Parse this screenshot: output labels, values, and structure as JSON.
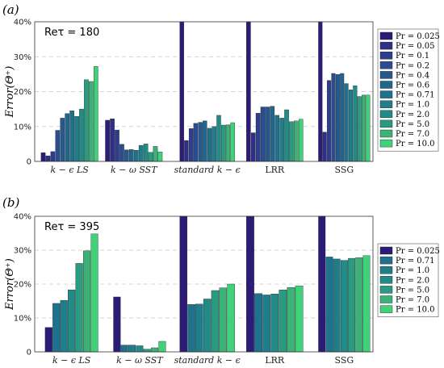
{
  "chart_data": [
    {
      "type": "bar",
      "panel_label": "(a)",
      "annotation": "Reτ = 180",
      "ylabel": "Error(Θ⁺)",
      "yticks": [
        "0",
        "10%",
        "20%",
        "30%",
        "40%"
      ],
      "ylim": [
        0,
        40
      ],
      "grid": true,
      "legend_position": "right",
      "categories": [
        "k − ϵ LS",
        "k − ω SST",
        "standard k − ϵ",
        "LRR",
        "SSG"
      ],
      "series": [
        {
          "name": "Pr = 0.025",
          "color": "#2d1b78",
          "values": [
            2.5,
            11.8,
            40,
            40,
            40
          ]
        },
        {
          "name": "Pr = 0.05",
          "color": "#302f87",
          "values": [
            1.6,
            12.2,
            6.0,
            8.2,
            8.4
          ]
        },
        {
          "name": "Pr = 0.1",
          "color": "#2e3e8f",
          "values": [
            2.8,
            9.0,
            9.4,
            13.8,
            23.2
          ]
        },
        {
          "name": "Pr = 0.2",
          "color": "#2a4c90",
          "values": [
            8.9,
            4.9,
            10.9,
            15.6,
            25.2
          ]
        },
        {
          "name": "Pr = 0.4",
          "color": "#265a8f",
          "values": [
            12.4,
            3.3,
            11.2,
            15.6,
            24.9
          ]
        },
        {
          "name": "Pr = 0.6",
          "color": "#22668e",
          "values": [
            13.7,
            3.4,
            11.6,
            15.8,
            25.2
          ]
        },
        {
          "name": "Pr = 0.71",
          "color": "#1f728d",
          "values": [
            14.5,
            3.2,
            9.5,
            13.2,
            22.3
          ]
        },
        {
          "name": "Pr = 1.0",
          "color": "#1f7e8b",
          "values": [
            12.9,
            4.6,
            10.0,
            12.4,
            20.5
          ]
        },
        {
          "name": "Pr = 2.0",
          "color": "#218b87",
          "values": [
            15.0,
            5.0,
            13.2,
            14.8,
            21.7
          ]
        },
        {
          "name": "Pr = 5.0",
          "color": "#2a9a80",
          "values": [
            23.4,
            2.6,
            10.4,
            11.4,
            18.6
          ]
        },
        {
          "name": "Pr = 7.0",
          "color": "#3cb276",
          "values": [
            22.9,
            4.3,
            10.5,
            11.6,
            19.0
          ]
        },
        {
          "name": "Pr = 10.0",
          "color": "#3fd27a",
          "values": [
            27.2,
            2.7,
            11.1,
            12.1,
            19.0
          ]
        }
      ]
    },
    {
      "type": "bar",
      "panel_label": "(b)",
      "annotation": "Reτ = 395",
      "ylabel": "Error(Θ⁺)",
      "yticks": [
        "0",
        "10%",
        "20%",
        "30%",
        "40%"
      ],
      "ylim": [
        0,
        40
      ],
      "grid": true,
      "legend_position": "right",
      "categories": [
        "k − ϵ LS",
        "k − ω SST",
        "standard k − ϵ",
        "LRR",
        "SSG"
      ],
      "series": [
        {
          "name": "Pr = 0.025",
          "color": "#2d1b78",
          "values": [
            7.2,
            16.2,
            40,
            40,
            40
          ]
        },
        {
          "name": "Pr = 0.71",
          "color": "#1f728d",
          "values": [
            14.3,
            2.0,
            14.0,
            17.2,
            28.0
          ]
        },
        {
          "name": "Pr = 1.0",
          "color": "#1f7e8b",
          "values": [
            15.2,
            2.0,
            14.1,
            16.8,
            27.4
          ]
        },
        {
          "name": "Pr = 2.0",
          "color": "#218b87",
          "values": [
            18.3,
            1.8,
            15.6,
            17.1,
            27.0
          ]
        },
        {
          "name": "Pr = 5.0",
          "color": "#2a9a80",
          "values": [
            26.1,
            0.8,
            18.1,
            18.3,
            27.6
          ]
        },
        {
          "name": "Pr = 7.0",
          "color": "#3cb276",
          "values": [
            29.8,
            1.2,
            18.9,
            19.0,
            27.8
          ]
        },
        {
          "name": "Pr = 10.0",
          "color": "#3fd27a",
          "values": [
            34.8,
            3.1,
            20.0,
            19.5,
            28.4
          ]
        }
      ]
    }
  ]
}
